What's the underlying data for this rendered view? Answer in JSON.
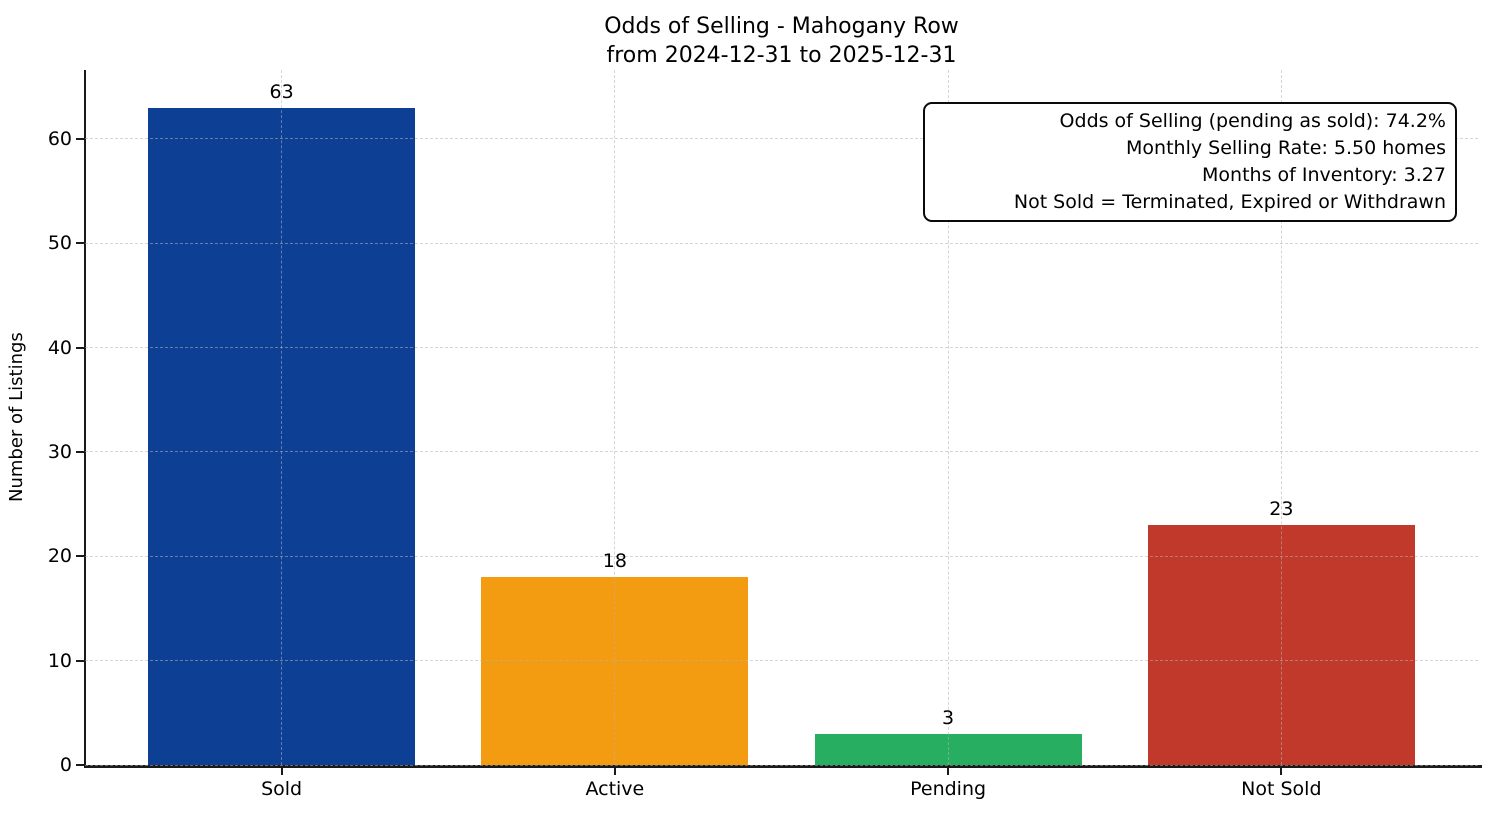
{
  "chart_data": {
    "type": "bar",
    "title_lines": [
      "Odds of Selling - Mahogany Row",
      "from 2024-12-31 to 2025-12-31"
    ],
    "categories": [
      "Sold",
      "Active",
      "Pending",
      "Not Sold"
    ],
    "values": [
      63,
      18,
      3,
      23
    ],
    "bar_colors": [
      "#0d3f94",
      "#f39c12",
      "#27ae60",
      "#c0392b"
    ],
    "xlabel": "",
    "ylabel": "Number of Listings",
    "yticks": [
      0,
      10,
      20,
      30,
      40,
      50,
      60
    ],
    "ylim": [
      0,
      66.6
    ],
    "grid": {
      "style": "dashed",
      "color": "#b2b2b2",
      "axes": "both",
      "drawn_above_bars": true
    },
    "legend": "none",
    "annotation_box": {
      "lines": [
        "Odds of Selling (pending as sold): 74.2%",
        "Monthly Selling Rate: 5.50 homes",
        "Months of Inventory: 3.27",
        "Not Sold = Terminated, Expired or Withdrawn"
      ]
    },
    "axis_color": "#1a1a1a",
    "background_color": "#ffffff"
  }
}
